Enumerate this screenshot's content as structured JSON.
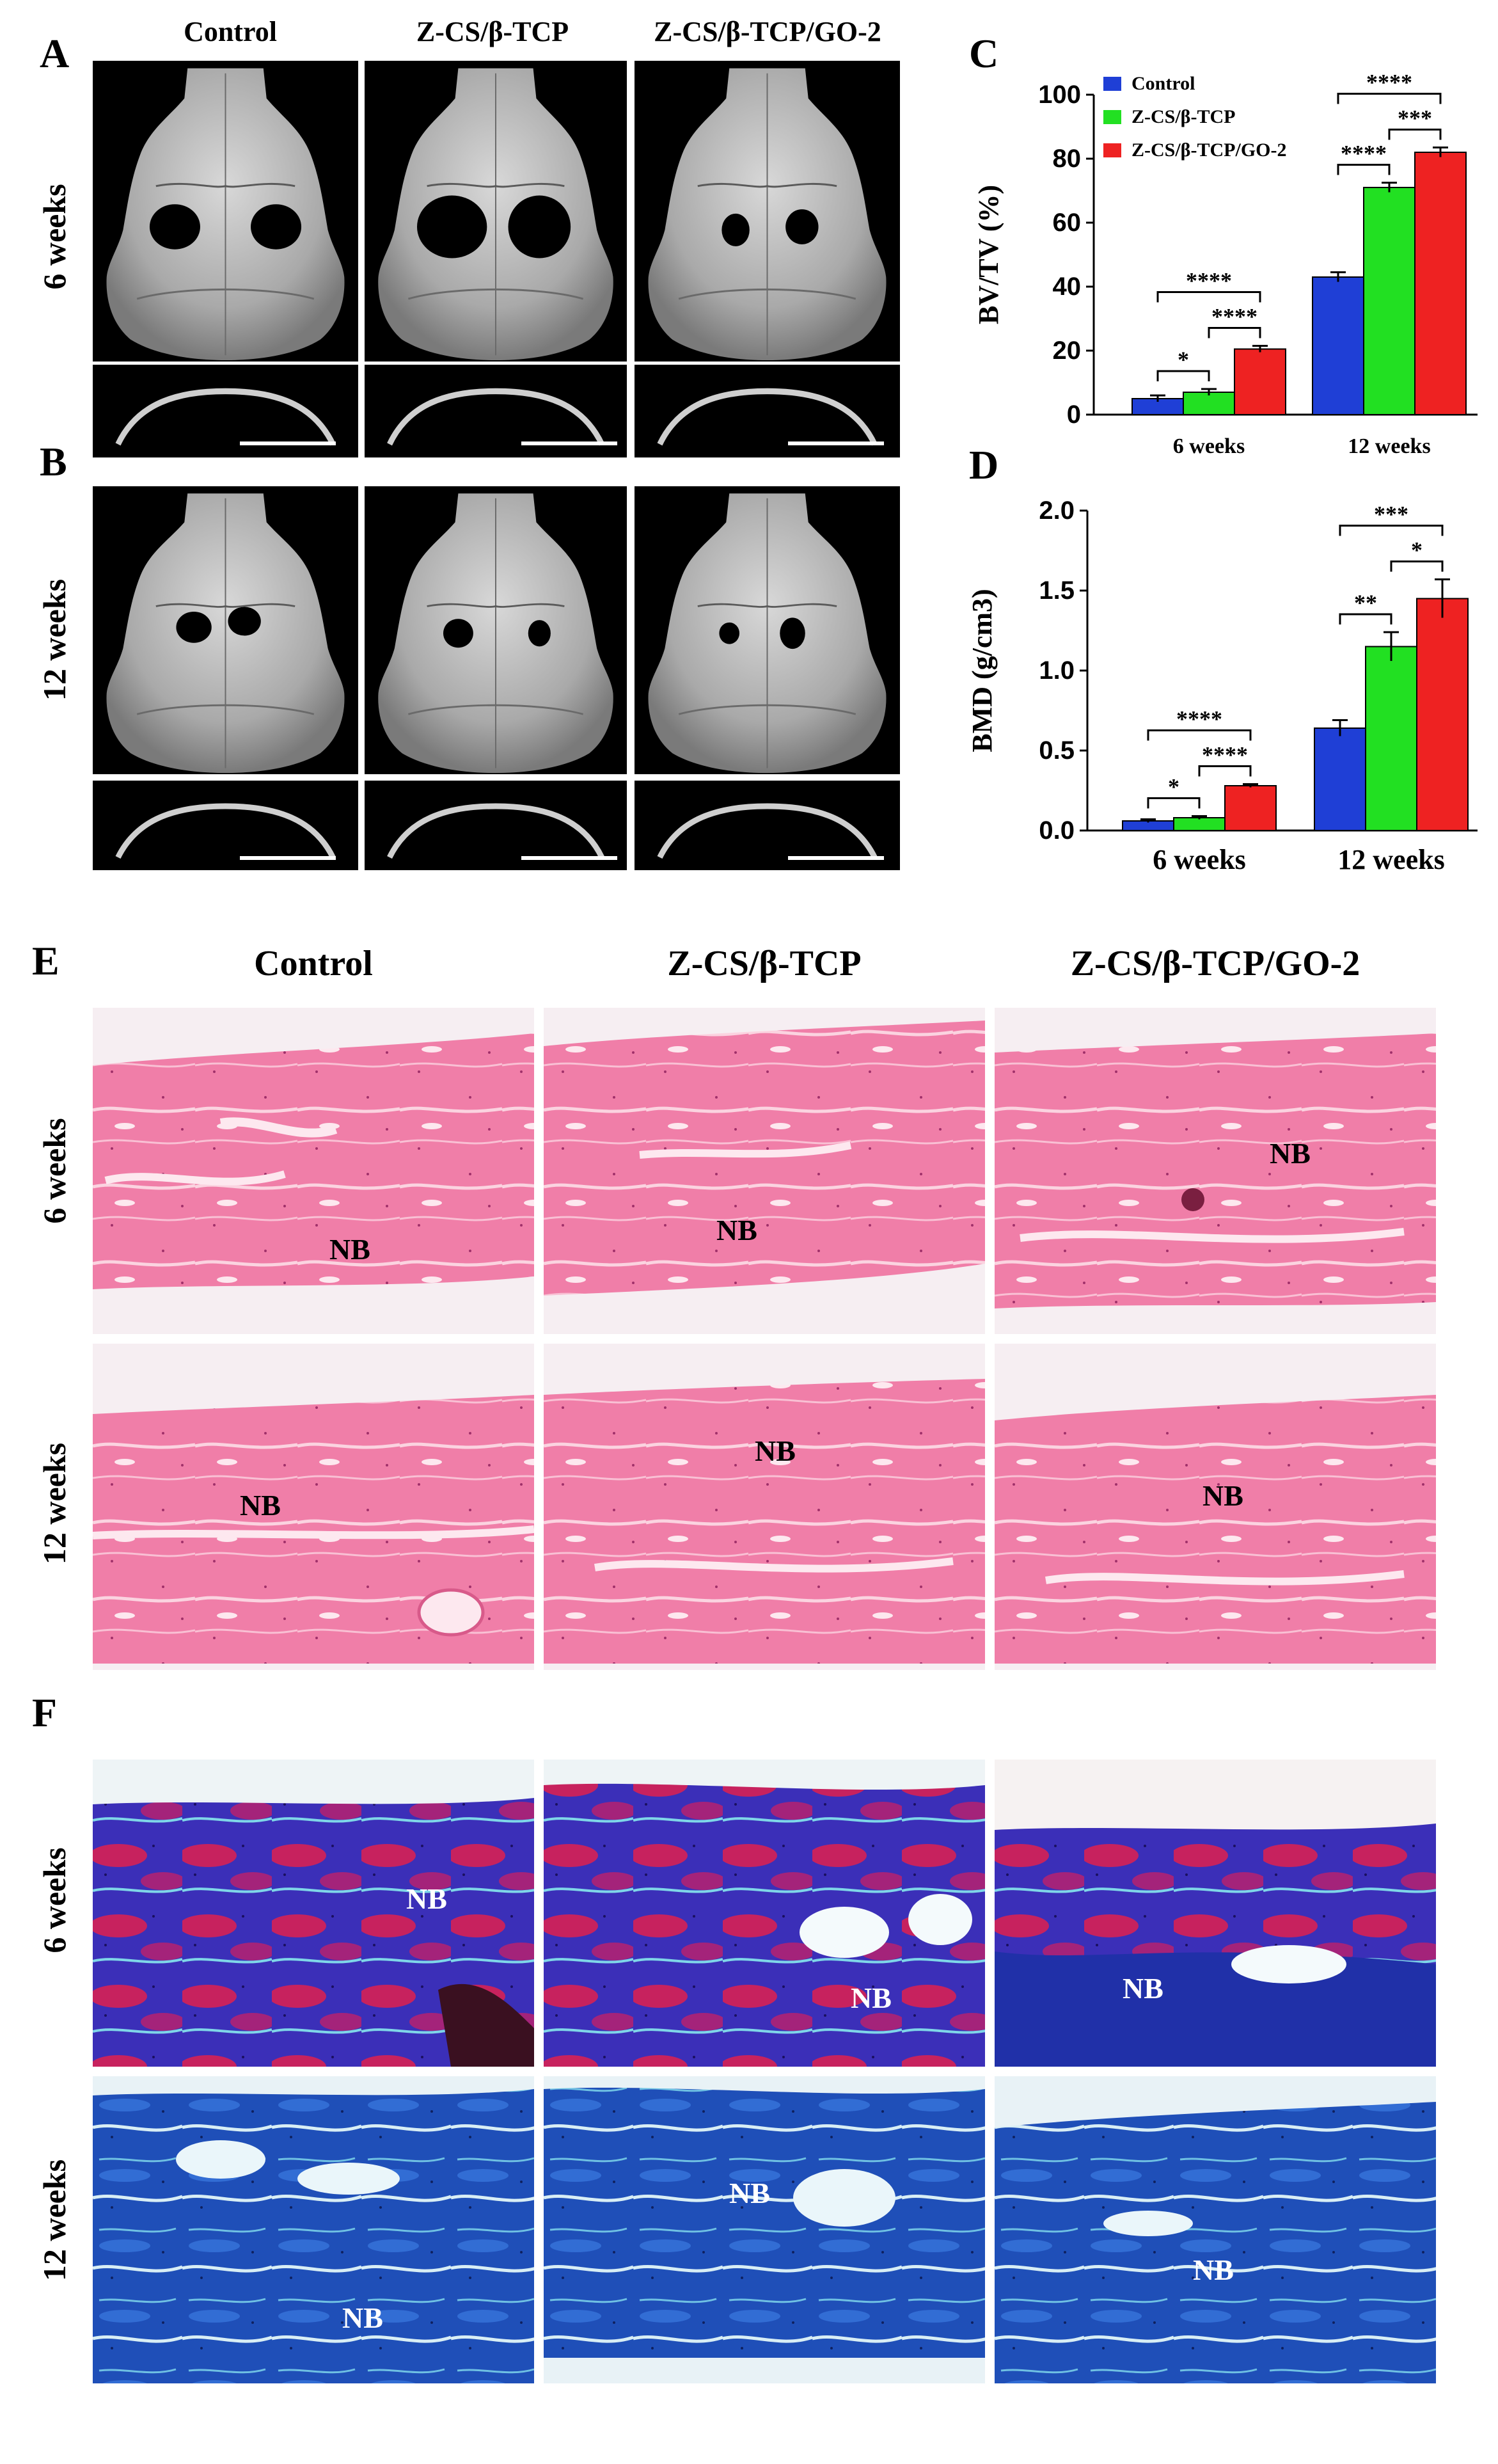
{
  "panels": {
    "A": "A",
    "B": "B",
    "C": "C",
    "D": "D",
    "E": "E",
    "F": "F"
  },
  "groups": [
    "Control",
    "Z-CS/β-TCP",
    "Z-CS/β-TCP/GO-2"
  ],
  "timepoints": [
    "6 weeks",
    "12 weeks"
  ],
  "nb_label": "NB",
  "colors": {
    "control": "#1f3fd6",
    "zcs": "#22e022",
    "zcsgo": "#ee2222"
  },
  "chart_data": [
    {
      "type": "bar",
      "panel": "C",
      "categories": [
        "6 weeks",
        "12 weeks"
      ],
      "series": [
        {
          "name": "Control",
          "values": [
            5,
            43
          ],
          "errors": [
            1,
            1.5
          ]
        },
        {
          "name": "Z-CS/β-TCP",
          "values": [
            7,
            71
          ],
          "errors": [
            1,
            1.5
          ]
        },
        {
          "name": "Z-CS/β-TCP/GO-2",
          "values": [
            20.5,
            82
          ],
          "errors": [
            1,
            1.5
          ]
        }
      ],
      "ylabel": "BV/TV (%)",
      "ylim": [
        0,
        100
      ],
      "yticks": [
        0,
        20,
        40,
        60,
        80,
        100
      ],
      "legend": "top-left",
      "significance": [
        {
          "category": 0,
          "from": 0,
          "to": 1,
          "label": "*"
        },
        {
          "category": 0,
          "from": 1,
          "to": 2,
          "label": "****"
        },
        {
          "category": 0,
          "from": 0,
          "to": 2,
          "label": "****"
        },
        {
          "category": 1,
          "from": 0,
          "to": 1,
          "label": "****"
        },
        {
          "category": 1,
          "from": 1,
          "to": 2,
          "label": "***"
        },
        {
          "category": 1,
          "from": 0,
          "to": 2,
          "label": "****"
        }
      ]
    },
    {
      "type": "bar",
      "panel": "D",
      "categories": [
        "6 weeks",
        "12 weeks"
      ],
      "series": [
        {
          "name": "Control",
          "values": [
            0.06,
            0.64
          ],
          "errors": [
            0.01,
            0.05
          ]
        },
        {
          "name": "Z-CS/β-TCP",
          "values": [
            0.08,
            1.15
          ],
          "errors": [
            0.01,
            0.09
          ]
        },
        {
          "name": "Z-CS/β-TCP/GO-2",
          "values": [
            0.28,
            1.45
          ],
          "errors": [
            0.01,
            0.12
          ]
        }
      ],
      "ylabel": "BMD (g/cm3)",
      "ylim": [
        0,
        2.0
      ],
      "yticks": [
        "0.0",
        "0.5",
        "1.0",
        "1.5",
        "2.0"
      ],
      "significance": [
        {
          "category": 0,
          "from": 0,
          "to": 1,
          "label": "*"
        },
        {
          "category": 0,
          "from": 1,
          "to": 2,
          "label": "****"
        },
        {
          "category": 0,
          "from": 0,
          "to": 2,
          "label": "****"
        },
        {
          "category": 1,
          "from": 0,
          "to": 1,
          "label": "**"
        },
        {
          "category": 1,
          "from": 1,
          "to": 2,
          "label": "*"
        },
        {
          "category": 1,
          "from": 0,
          "to": 2,
          "label": "***"
        }
      ]
    }
  ]
}
